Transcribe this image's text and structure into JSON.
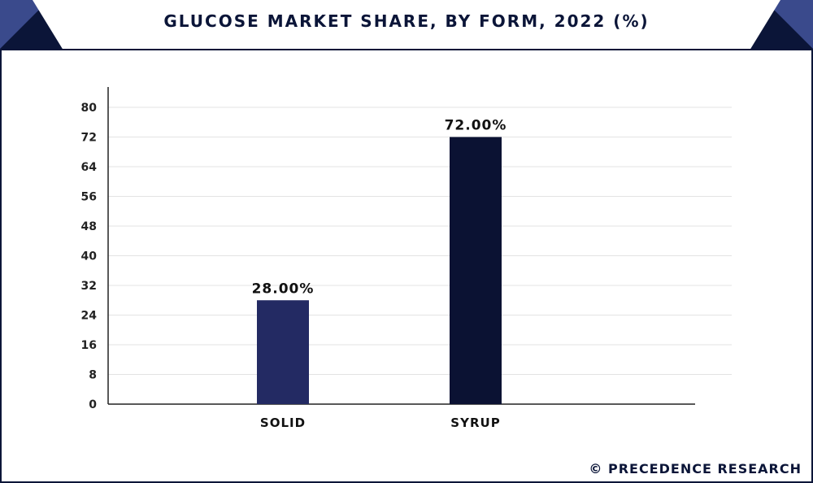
{
  "header": {
    "title": "GLUCOSE MARKET SHARE, BY FORM, 2022 (%)"
  },
  "footer": {
    "credit": "© PRECEDENCE RESEARCH"
  },
  "colors": {
    "frame": "#0b1538",
    "accent": "#3a4a8c",
    "solid_bar": "#232a63",
    "syrup_bar": "#0b1233",
    "grid": "#e3e3e3",
    "axis": "#222222"
  },
  "chart_data": {
    "type": "bar",
    "title": "GLUCOSE MARKET SHARE, BY FORM, 2022 (%)",
    "xlabel": "",
    "ylabel": "",
    "categories": [
      "SOLID",
      "SYRUP"
    ],
    "values": [
      28.0,
      72.0
    ],
    "data_labels": [
      "28.00%",
      "72.00%"
    ],
    "ylim": [
      0,
      80
    ],
    "yticks": [
      0,
      8,
      16,
      24,
      32,
      40,
      48,
      56,
      64,
      72,
      80
    ],
    "grid": true,
    "legend": "none"
  }
}
